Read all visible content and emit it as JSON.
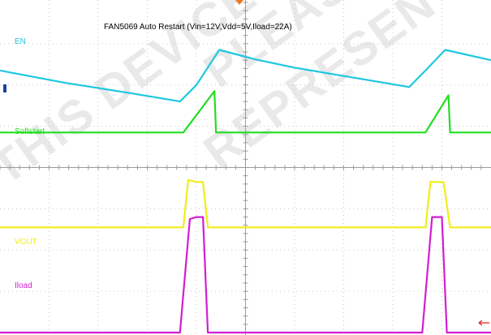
{
  "chart_data": {
    "type": "line",
    "title": "FAN5069 Auto Restart (Vin=12V,Vdd=5V,Iload=22A)",
    "watermark": [
      "THIS DEVICE IS",
      "PLEASE",
      "REPRESEN"
    ],
    "grid": true,
    "divisions": {
      "x": 10,
      "y": 8
    },
    "series": [
      {
        "name": "EN",
        "color": "#1cc8e0",
        "points": [
          [
            0,
            6.35
          ],
          [
            2.0,
            6.05
          ],
          [
            4.0,
            5.8
          ],
          [
            5.5,
            5.6
          ],
          [
            6.0,
            6.0
          ],
          [
            6.7,
            6.85
          ],
          [
            7.8,
            6.62
          ],
          [
            9.0,
            6.42
          ],
          [
            11.0,
            6.15
          ],
          [
            12.5,
            5.95
          ],
          [
            13.0,
            6.35
          ],
          [
            13.6,
            6.85
          ],
          [
            15.0,
            6.6
          ]
        ]
      },
      {
        "name": "Softstart",
        "color": "#22dd22",
        "points": [
          [
            0,
            4.85
          ],
          [
            5.6,
            4.85
          ],
          [
            6.55,
            5.85
          ],
          [
            6.6,
            4.85
          ],
          [
            13.0,
            4.85
          ],
          [
            13.7,
            5.75
          ],
          [
            13.75,
            4.85
          ],
          [
            15.0,
            4.85
          ]
        ]
      },
      {
        "name": "VOUT",
        "color": "#f0ee18",
        "points": [
          [
            0,
            2.55
          ],
          [
            5.6,
            2.55
          ],
          [
            5.75,
            3.7
          ],
          [
            6.0,
            3.65
          ],
          [
            6.2,
            3.65
          ],
          [
            6.35,
            2.55
          ],
          [
            13.0,
            2.55
          ],
          [
            13.15,
            3.65
          ],
          [
            13.55,
            3.65
          ],
          [
            13.75,
            2.55
          ],
          [
            15.0,
            2.55
          ]
        ]
      },
      {
        "name": "Iload",
        "color": "#d21ed2",
        "points": [
          [
            0,
            0.0
          ],
          [
            5.5,
            0.0
          ],
          [
            5.8,
            2.75
          ],
          [
            6.0,
            2.8
          ],
          [
            6.2,
            2.8
          ],
          [
            6.35,
            0.0
          ],
          [
            12.9,
            0.0
          ],
          [
            13.2,
            2.8
          ],
          [
            13.5,
            2.8
          ],
          [
            13.65,
            0.0
          ],
          [
            15.0,
            0.0
          ]
        ]
      }
    ]
  }
}
